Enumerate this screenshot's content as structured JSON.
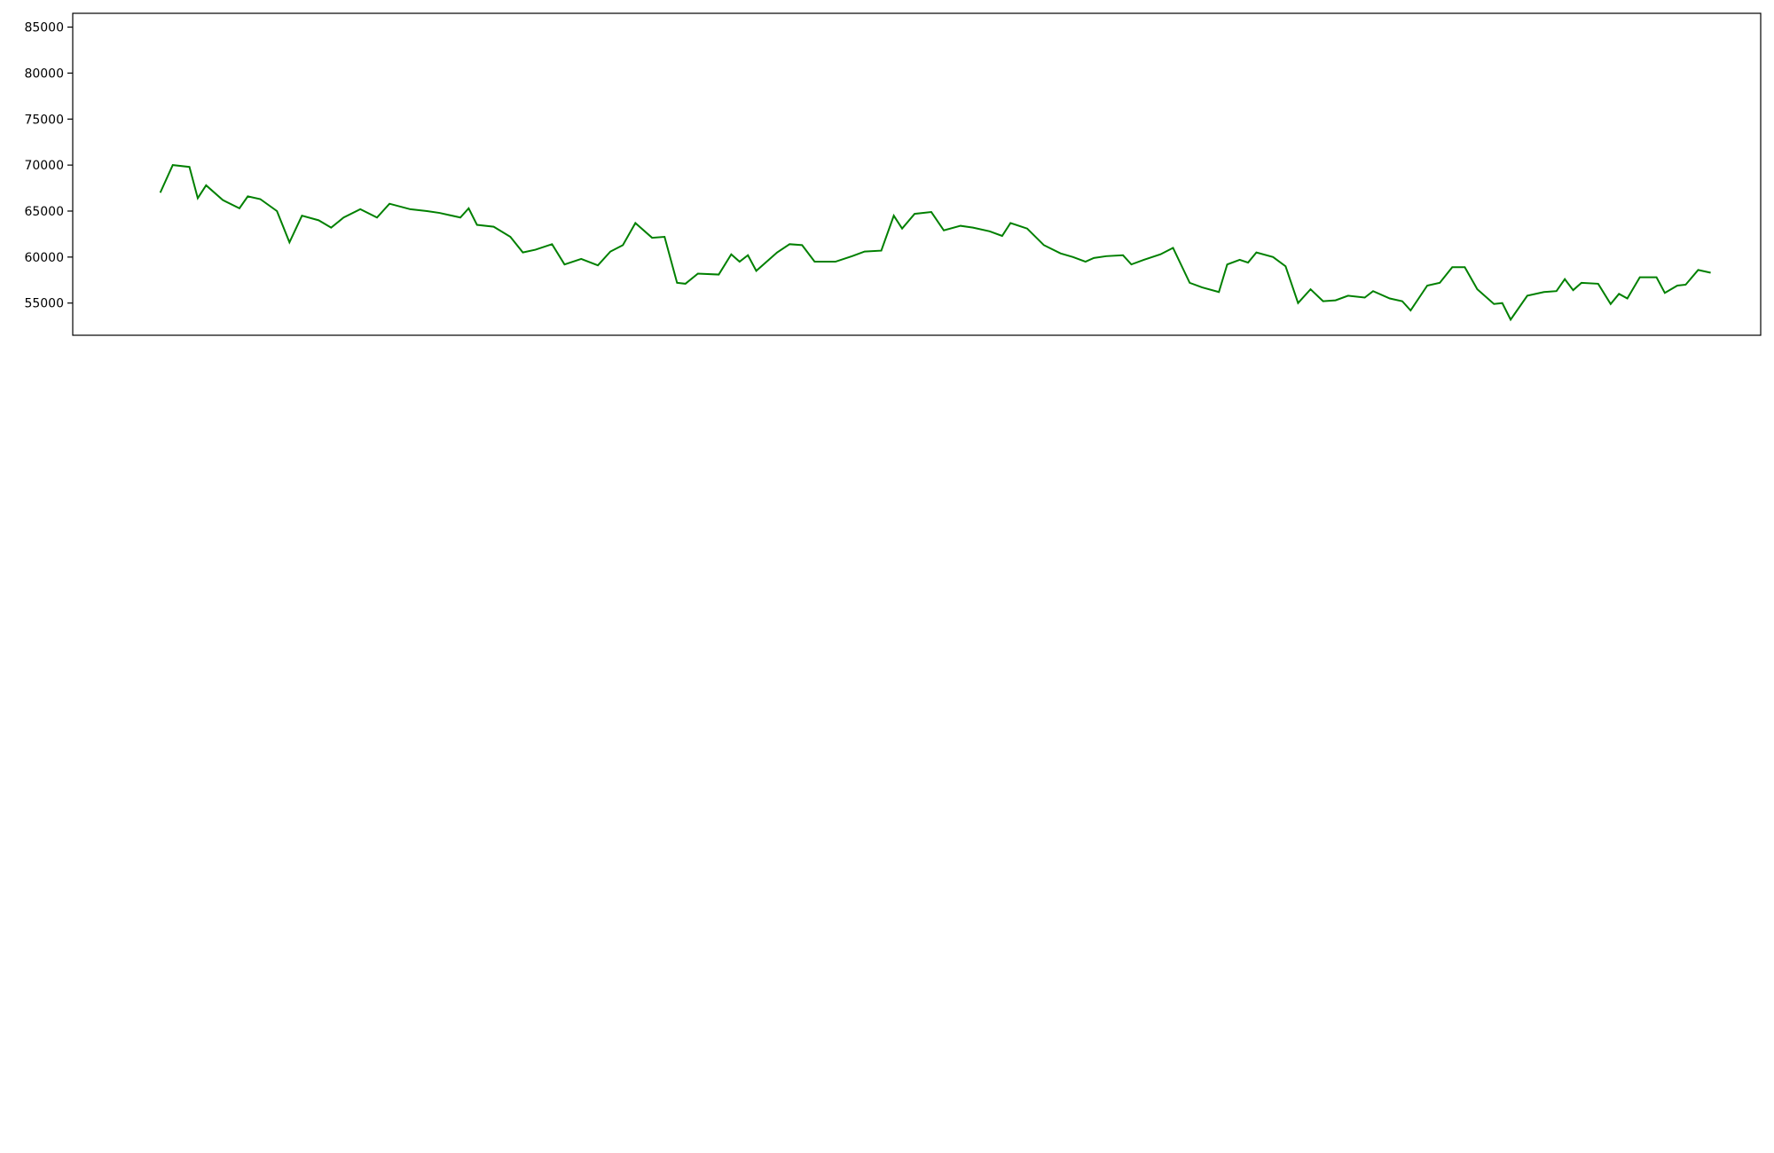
{
  "chart_data": [
    {
      "id": "price",
      "type": "line",
      "ylim": [
        51500,
        86500
      ],
      "y_ticks": [
        55000,
        60000,
        65000,
        70000,
        75000,
        80000,
        85000
      ],
      "y_tick_labels": [
        "55000",
        "60000",
        "65000",
        "70000",
        "75000",
        "80000",
        "85000"
      ],
      "show_x_ticks": false,
      "legend": null,
      "series": [
        {
          "color": "#008000",
          "points": [
            [
              "2022-04-22",
              67000
            ],
            [
              "2022-04-25",
              70000
            ],
            [
              "2022-04-29",
              69800
            ],
            [
              "2022-05-01",
              66400
            ],
            [
              "2022-05-03",
              67800
            ],
            [
              "2022-05-07",
              66200
            ],
            [
              "2022-05-11",
              65300
            ],
            [
              "2022-05-13",
              66600
            ],
            [
              "2022-05-16",
              66300
            ],
            [
              "2022-05-20",
              65000
            ],
            [
              "2022-05-23",
              61600
            ],
            [
              "2022-05-26",
              64500
            ],
            [
              "2022-05-30",
              64000
            ],
            [
              "2022-06-02",
              63200
            ],
            [
              "2022-06-05",
              64300
            ],
            [
              "2022-06-09",
              65200
            ],
            [
              "2022-06-13",
              64300
            ],
            [
              "2022-06-16",
              65800
            ],
            [
              "2022-06-21",
              65200
            ],
            [
              "2022-06-25",
              65000
            ],
            [
              "2022-06-28",
              64800
            ],
            [
              "2022-07-03",
              64300
            ],
            [
              "2022-07-05",
              65300
            ],
            [
              "2022-07-07",
              63500
            ],
            [
              "2022-07-11",
              63300
            ],
            [
              "2022-07-15",
              62200
            ],
            [
              "2022-07-18",
              60500
            ],
            [
              "2022-07-21",
              60800
            ],
            [
              "2022-07-25",
              61400
            ],
            [
              "2022-07-28",
              59200
            ],
            [
              "2022-08-01",
              59800
            ],
            [
              "2022-08-05",
              59100
            ],
            [
              "2022-08-08",
              60600
            ],
            [
              "2022-08-11",
              61300
            ],
            [
              "2022-08-14",
              63700
            ],
            [
              "2022-08-18",
              62100
            ],
            [
              "2022-08-21",
              62200
            ],
            [
              "2022-08-24",
              57200
            ],
            [
              "2022-08-26",
              57100
            ],
            [
              "2022-08-29",
              58200
            ],
            [
              "2022-09-03",
              58100
            ],
            [
              "2022-09-06",
              60300
            ],
            [
              "2022-09-08",
              59500
            ],
            [
              "2022-09-10",
              60200
            ],
            [
              "2022-09-12",
              58500
            ],
            [
              "2022-09-17",
              60500
            ],
            [
              "2022-09-20",
              61400
            ],
            [
              "2022-09-23",
              61300
            ],
            [
              "2022-09-26",
              59500
            ],
            [
              "2022-10-01",
              59500
            ],
            [
              "2022-10-05",
              60100
            ],
            [
              "2022-10-08",
              60600
            ],
            [
              "2022-10-12",
              60700
            ],
            [
              "2022-10-15",
              64500
            ],
            [
              "2022-10-17",
              63100
            ],
            [
              "2022-10-20",
              64700
            ],
            [
              "2022-10-24",
              64900
            ],
            [
              "2022-10-27",
              62900
            ],
            [
              "2022-10-31",
              63400
            ],
            [
              "2022-11-03",
              63200
            ],
            [
              "2022-11-07",
              62800
            ],
            [
              "2022-11-10",
              62300
            ],
            [
              "2022-11-12",
              63700
            ],
            [
              "2022-11-16",
              63100
            ],
            [
              "2022-11-20",
              61300
            ],
            [
              "2022-11-24",
              60400
            ],
            [
              "2022-11-27",
              60000
            ],
            [
              "2022-11-30",
              59500
            ],
            [
              "2022-12-02",
              59900
            ],
            [
              "2022-12-05",
              60100
            ],
            [
              "2022-12-09",
              60200
            ],
            [
              "2022-12-11",
              59200
            ],
            [
              "2022-12-14",
              59700
            ],
            [
              "2022-12-18",
              60300
            ],
            [
              "2022-12-21",
              61000
            ],
            [
              "2022-12-25",
              57200
            ],
            [
              "2022-12-28",
              56700
            ],
            [
              "2023-01-01",
              56200
            ],
            [
              "2023-01-03",
              59200
            ],
            [
              "2023-01-06",
              59700
            ],
            [
              "2023-01-08",
              59400
            ],
            [
              "2023-01-10",
              60500
            ],
            [
              "2023-01-14",
              60000
            ],
            [
              "2023-01-17",
              59000
            ],
            [
              "2023-01-20",
              55000
            ],
            [
              "2023-01-23",
              56500
            ],
            [
              "2023-01-26",
              55200
            ],
            [
              "2023-01-29",
              55300
            ],
            [
              "2023-02-01",
              55800
            ],
            [
              "2023-02-05",
              55600
            ],
            [
              "2023-02-07",
              56300
            ],
            [
              "2023-02-11",
              55500
            ],
            [
              "2023-02-14",
              55200
            ],
            [
              "2023-02-16",
              54200
            ],
            [
              "2023-02-20",
              56900
            ],
            [
              "2023-02-23",
              57200
            ],
            [
              "2023-02-26",
              58900
            ],
            [
              "2023-03-01",
              58900
            ],
            [
              "2023-03-04",
              56500
            ],
            [
              "2023-03-08",
              54900
            ],
            [
              "2023-03-10",
              55000
            ],
            [
              "2023-03-12",
              53200
            ],
            [
              "2023-03-16",
              55800
            ],
            [
              "2023-03-20",
              56200
            ],
            [
              "2023-03-23",
              56300
            ],
            [
              "2023-03-25",
              57600
            ],
            [
              "2023-03-27",
              56400
            ],
            [
              "2023-03-29",
              57200
            ],
            [
              "2023-04-02",
              57100
            ],
            [
              "2023-04-05",
              54900
            ],
            [
              "2023-04-07",
              56000
            ],
            [
              "2023-04-09",
              55500
            ],
            [
              "2023-04-12",
              57800
            ],
            [
              "2023-04-16",
              57800
            ],
            [
              "2023-04-18",
              56100
            ],
            [
              "2023-04-21",
              56900
            ],
            [
              "2023-04-23",
              57000
            ],
            [
              "2023-04-26",
              58600
            ],
            [
              "2023-04-29",
              58300
            ]
          ]
        }
      ]
    }
  ]
}
